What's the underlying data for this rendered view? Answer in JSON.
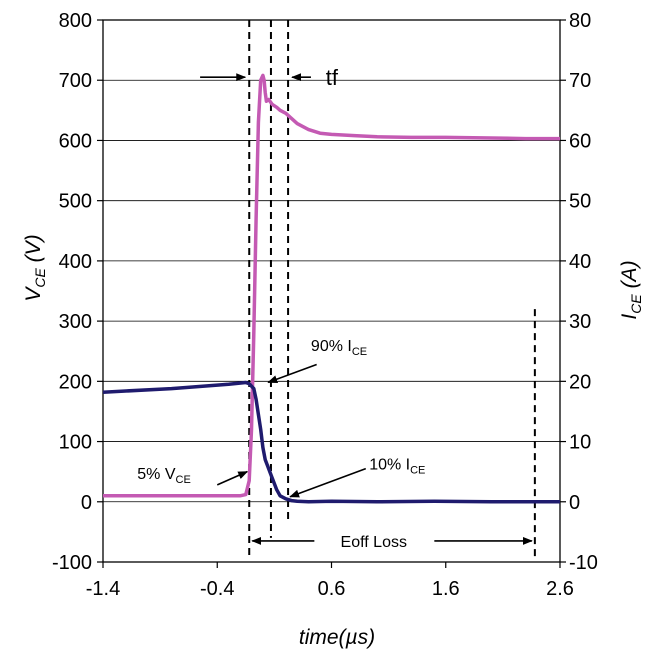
{
  "chart_data": {
    "type": "line",
    "xlabel": "time(µs)",
    "ylabel_left": {
      "base": "V",
      "sub": "CE",
      "unit": " (V)"
    },
    "ylabel_right": {
      "base": "I",
      "sub": "CE",
      "unit": " (A)"
    },
    "xlim": [
      -1.4,
      2.6
    ],
    "ylim_left": [
      -100,
      800
    ],
    "ylim_right": [
      -10,
      80
    ],
    "x_ticks": [
      "-1.4",
      "-0.4",
      "0.6",
      "1.6",
      "2.6"
    ],
    "x_tick_values": [
      -1.4,
      -0.4,
      0.6,
      1.6,
      2.6
    ],
    "y_left_ticks": [
      "-100",
      "0",
      "100",
      "200",
      "300",
      "400",
      "500",
      "600",
      "700",
      "800"
    ],
    "y_left_tick_values": [
      -100,
      0,
      100,
      200,
      300,
      400,
      500,
      600,
      700,
      800
    ],
    "y_right_ticks": [
      "-10",
      "0",
      "10",
      "20",
      "30",
      "40",
      "50",
      "60",
      "70",
      "80"
    ],
    "y_right_tick_values": [
      -10,
      0,
      10,
      20,
      30,
      40,
      50,
      60,
      70,
      80
    ],
    "gridlines": "horizontal",
    "colors": {
      "vce": "#c45ab3",
      "ice": "#1f1b6e"
    },
    "series": [
      {
        "key": "vce",
        "axis": "left",
        "x": [
          -1.4,
          -0.6,
          -0.2,
          -0.15,
          -0.12,
          -0.1,
          -0.08,
          -0.06,
          -0.04,
          -0.02,
          0.0,
          0.01,
          0.02,
          0.03,
          0.05,
          0.08,
          0.12,
          0.15,
          0.2,
          0.3,
          0.4,
          0.5,
          0.6,
          0.8,
          1.0,
          1.3,
          1.6,
          2.0,
          2.3,
          2.6
        ],
        "y": [
          10,
          10,
          10,
          12,
          35,
          120,
          280,
          470,
          630,
          700,
          708,
          700,
          680,
          665,
          668,
          660,
          655,
          650,
          645,
          628,
          618,
          612,
          610,
          608,
          606,
          605,
          605,
          604,
          603,
          603
        ]
      },
      {
        "key": "ice",
        "axis": "right",
        "x": [
          -1.4,
          -0.8,
          -0.3,
          -0.15,
          -0.12,
          -0.1,
          -0.08,
          -0.06,
          -0.04,
          -0.02,
          0.0,
          0.02,
          0.04,
          0.06,
          0.08,
          0.1,
          0.12,
          0.15,
          0.2,
          0.25,
          0.3,
          0.4,
          0.6,
          1.0,
          1.5,
          2.0,
          2.6
        ],
        "y": [
          18.2,
          18.8,
          19.5,
          19.8,
          19.6,
          19.2,
          18.8,
          17.0,
          14.5,
          12.0,
          9.0,
          7.0,
          6.0,
          5.0,
          4.0,
          3.0,
          2.0,
          1.0,
          0.5,
          0.2,
          0.1,
          0.0,
          0.1,
          0.0,
          0.1,
          0.0,
          0.0
        ]
      }
    ],
    "annotations": {
      "tf": "tf",
      "p90": {
        "text": "90% I",
        "sub": "CE"
      },
      "p10": {
        "text": "10% I",
        "sub": "CE"
      },
      "p5": {
        "text": "5% V",
        "sub": "CE"
      },
      "eoff": "Eoff Loss"
    },
    "markers": {
      "dashed_x": [
        -0.12,
        0.07,
        0.22,
        2.38
      ],
      "tf_arrow_y": 705,
      "eoff_arrow_y": -65,
      "p90_point": [
        0.02,
        19.5
      ],
      "p10_point": [
        0.22,
        1.0
      ],
      "p5_point": [
        -0.12,
        50
      ]
    }
  }
}
